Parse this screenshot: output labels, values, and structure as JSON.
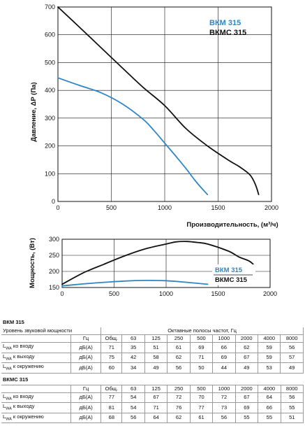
{
  "chart_data": [
    {
      "type": "line",
      "ylabel": "Давление, ΔP (Па)",
      "xlabel": "Производительность, (м³/ч)",
      "xlim": [
        0,
        2000
      ],
      "ylim": [
        0,
        700
      ],
      "x_ticks": [
        "0",
        "500",
        "1000",
        "1500",
        "2000"
      ],
      "y_ticks": [
        "0",
        "100",
        "200",
        "300",
        "400",
        "500",
        "600",
        "700"
      ],
      "grid": true,
      "legend_placement": "top-right",
      "series": [
        {
          "name": "ВКМ 315",
          "color": "#2f86c4",
          "x": [
            0,
            200,
            400,
            600,
            800,
            900,
            1000,
            1100,
            1200,
            1300,
            1400
          ],
          "y": [
            445,
            418,
            392,
            352,
            295,
            255,
            210,
            165,
            118,
            68,
            25
          ]
        },
        {
          "name": "ВКМС 315",
          "color": "#111111",
          "x": [
            0,
            200,
            400,
            600,
            800,
            1000,
            1200,
            1400,
            1600,
            1700,
            1800,
            1850,
            1880
          ],
          "y": [
            700,
            628,
            555,
            482,
            410,
            345,
            262,
            200,
            148,
            125,
            95,
            60,
            25
          ]
        }
      ]
    },
    {
      "type": "line",
      "ylabel": "Мощность, (Вт)",
      "xlim": [
        0,
        2000
      ],
      "ylim": [
        150,
        300
      ],
      "x_ticks": [
        "0",
        "500",
        "1000",
        "1500",
        "2000"
      ],
      "y_ticks": [
        "150",
        "200",
        "250",
        "300"
      ],
      "grid": true,
      "legend_placement": "right",
      "series": [
        {
          "name": "ВКМ 315",
          "color": "#2f86c4",
          "x": [
            0,
            200,
            400,
            600,
            800,
            1000,
            1200,
            1400
          ],
          "y": [
            155,
            161,
            166,
            170,
            172,
            171,
            166,
            160
          ]
        },
        {
          "name": "ВКМС 315",
          "color": "#111111",
          "x": [
            0,
            200,
            400,
            600,
            800,
            1000,
            1100,
            1200,
            1300,
            1400,
            1600,
            1700,
            1800,
            1850
          ],
          "y": [
            160,
            195,
            222,
            248,
            270,
            285,
            292,
            293,
            290,
            285,
            263,
            245,
            232,
            218
          ]
        }
      ]
    }
  ],
  "tables": [
    {
      "title": "ВКМ 315",
      "subtitle_left": "Уровень звуковой мощности",
      "subtitle_right": "Октавные полосы частот, Гц",
      "header": [
        "Гц",
        "Общ.",
        "63",
        "125",
        "250",
        "500",
        "1000",
        "2000",
        "4000",
        "8000"
      ],
      "rows": [
        {
          "label_sub": "WA",
          "label_rest": " ко входу",
          "unit": "дБ(А)",
          "values": [
            "71",
            "35",
            "51",
            "61",
            "69",
            "66",
            "62",
            "59",
            "56"
          ]
        },
        {
          "label_sub": "WA",
          "label_rest": " к выходу",
          "unit": "дБ(А)",
          "values": [
            "75",
            "42",
            "58",
            "62",
            "71",
            "69",
            "67",
            "59",
            "57"
          ]
        },
        {
          "label_sub": "WA",
          "label_rest": " к окружению",
          "unit": "дБ(А)",
          "values": [
            "60",
            "34",
            "49",
            "56",
            "50",
            "44",
            "49",
            "53",
            "49"
          ]
        }
      ]
    },
    {
      "title": "ВКМС 315",
      "header": [
        "Гц",
        "Общ.",
        "63",
        "125",
        "250",
        "500",
        "1000",
        "2000",
        "4000",
        "8000"
      ],
      "rows": [
        {
          "label_sub": "WA",
          "label_rest": " ко входу",
          "unit": "дБ(А)",
          "values": [
            "77",
            "54",
            "67",
            "72",
            "70",
            "72",
            "67",
            "64",
            "56"
          ]
        },
        {
          "label_sub": "WA",
          "label_rest": " к выходу",
          "unit": "дБ(А)",
          "values": [
            "81",
            "54",
            "71",
            "76",
            "77",
            "73",
            "69",
            "66",
            "55"
          ]
        },
        {
          "label_sub": "WA",
          "label_rest": " к окружению",
          "unit": "дБ(А)",
          "values": [
            "68",
            "56",
            "64",
            "62",
            "61",
            "56",
            "55",
            "55",
            "51"
          ]
        }
      ]
    }
  ]
}
